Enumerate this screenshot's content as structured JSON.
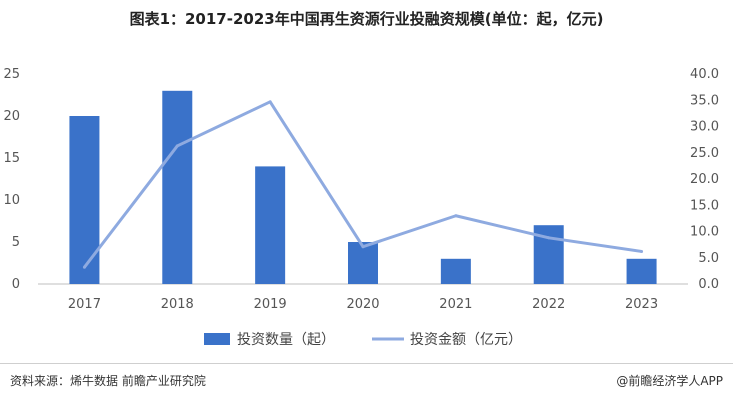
{
  "chart_data": {
    "type": "bar",
    "title": "图表1：2017-2023年中国再生资源行业投融资规模(单位：起，亿元)",
    "categories": [
      "2017",
      "2018",
      "2019",
      "2020",
      "2021",
      "2022",
      "2023"
    ],
    "series": [
      {
        "name": "投资数量（起）",
        "type": "bar",
        "axis": "left",
        "color": "#3a72c9",
        "values": [
          20,
          23,
          14,
          5,
          3,
          7,
          3
        ]
      },
      {
        "name": "投资金额（亿元）",
        "type": "line",
        "axis": "right",
        "color": "#8eaae0",
        "values": [
          3.2,
          26.3,
          34.7,
          7.1,
          13.0,
          8.8,
          6.2
        ]
      }
    ],
    "y_left": {
      "min": 0,
      "max": 25,
      "step": 5,
      "ticks": [
        "0",
        "5",
        "10",
        "15",
        "20",
        "25"
      ]
    },
    "y_right": {
      "min": 0,
      "max": 40,
      "step": 5,
      "ticks": [
        "0.0",
        "5.0",
        "10.0",
        "15.0",
        "20.0",
        "25.0",
        "30.0",
        "35.0",
        "40.0"
      ]
    },
    "grid": false,
    "legend_position": "bottom"
  },
  "footer": {
    "source": "资料来源：烯牛数据 前瞻产业研究院",
    "brand": "@前瞻经济学人APP"
  }
}
